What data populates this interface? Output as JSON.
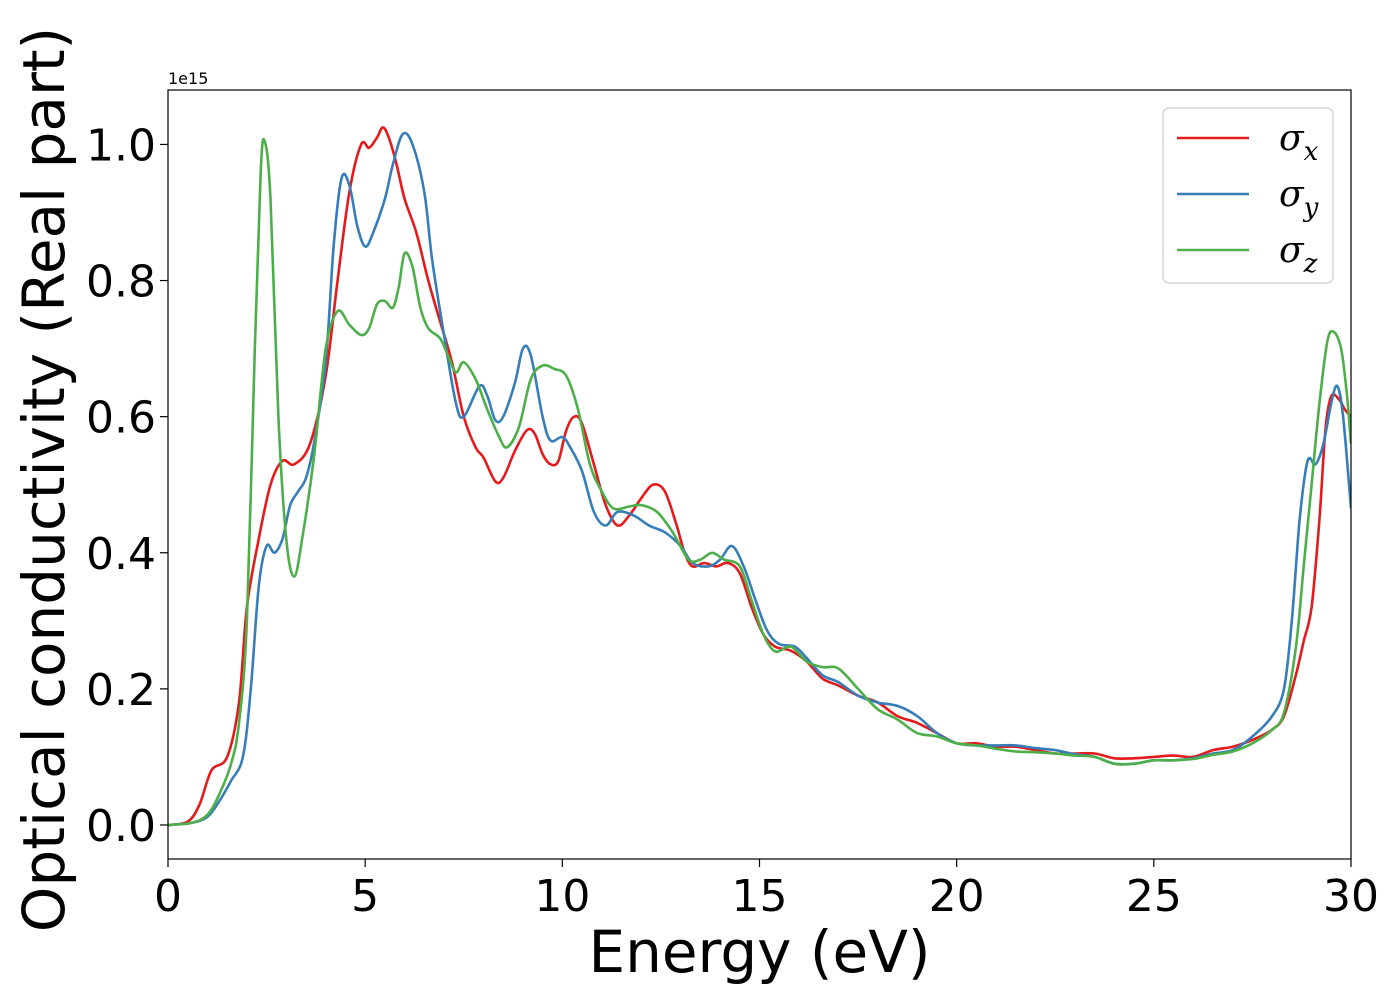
{
  "chart_data": {
    "type": "line",
    "xlabel": "Energy (eV)",
    "ylabel": "Optical conductivity (Real part)",
    "y_offset_label": "1e15",
    "xlim": [
      0,
      30
    ],
    "ylim": [
      -0.05,
      1.08
    ],
    "x_ticks": [
      0,
      5,
      10,
      15,
      20,
      25,
      30
    ],
    "x_tick_labels": [
      "0",
      "5",
      "10",
      "15",
      "20",
      "25",
      "30"
    ],
    "y_ticks": [
      0.0,
      0.2,
      0.4,
      0.6,
      0.8,
      1.0
    ],
    "y_tick_labels": [
      "0.0",
      "0.2",
      "0.4",
      "0.6",
      "0.8",
      "1.0"
    ],
    "grid": false,
    "legend_position": "top-right",
    "series": [
      {
        "name": "σ_x",
        "label_main": "σ",
        "label_sub": "x",
        "color": "#e41a1c",
        "points": [
          [
            0,
            0.0
          ],
          [
            0.5,
            0.005
          ],
          [
            0.8,
            0.03
          ],
          [
            1.1,
            0.08
          ],
          [
            1.5,
            0.1
          ],
          [
            1.8,
            0.18
          ],
          [
            2.0,
            0.32
          ],
          [
            2.3,
            0.42
          ],
          [
            2.6,
            0.5
          ],
          [
            2.9,
            0.535
          ],
          [
            3.2,
            0.53
          ],
          [
            3.6,
            0.56
          ],
          [
            4.0,
            0.66
          ],
          [
            4.3,
            0.8
          ],
          [
            4.6,
            0.93
          ],
          [
            4.9,
            1.0
          ],
          [
            5.1,
            0.995
          ],
          [
            5.3,
            1.01
          ],
          [
            5.45,
            1.025
          ],
          [
            5.6,
            1.01
          ],
          [
            5.8,
            0.97
          ],
          [
            6.0,
            0.92
          ],
          [
            6.3,
            0.87
          ],
          [
            6.6,
            0.8
          ],
          [
            6.9,
            0.74
          ],
          [
            7.2,
            0.68
          ],
          [
            7.5,
            0.6
          ],
          [
            7.8,
            0.555
          ],
          [
            8.0,
            0.54
          ],
          [
            8.3,
            0.505
          ],
          [
            8.5,
            0.51
          ],
          [
            8.8,
            0.55
          ],
          [
            9.1,
            0.58
          ],
          [
            9.3,
            0.575
          ],
          [
            9.5,
            0.545
          ],
          [
            9.7,
            0.53
          ],
          [
            9.9,
            0.535
          ],
          [
            10.1,
            0.58
          ],
          [
            10.3,
            0.6
          ],
          [
            10.5,
            0.59
          ],
          [
            10.8,
            0.53
          ],
          [
            11.1,
            0.47
          ],
          [
            11.4,
            0.44
          ],
          [
            11.7,
            0.455
          ],
          [
            12.0,
            0.48
          ],
          [
            12.3,
            0.5
          ],
          [
            12.6,
            0.49
          ],
          [
            12.9,
            0.44
          ],
          [
            13.1,
            0.4
          ],
          [
            13.3,
            0.38
          ],
          [
            13.6,
            0.385
          ],
          [
            13.9,
            0.38
          ],
          [
            14.2,
            0.385
          ],
          [
            14.5,
            0.37
          ],
          [
            14.8,
            0.32
          ],
          [
            15.1,
            0.28
          ],
          [
            15.4,
            0.262
          ],
          [
            15.8,
            0.256
          ],
          [
            16.2,
            0.24
          ],
          [
            16.6,
            0.215
          ],
          [
            17.0,
            0.205
          ],
          [
            17.5,
            0.19
          ],
          [
            18.0,
            0.18
          ],
          [
            18.5,
            0.16
          ],
          [
            19.0,
            0.15
          ],
          [
            19.5,
            0.135
          ],
          [
            20.0,
            0.12
          ],
          [
            20.5,
            0.12
          ],
          [
            21.0,
            0.115
          ],
          [
            21.5,
            0.115
          ],
          [
            22.0,
            0.11
          ],
          [
            22.5,
            0.105
          ],
          [
            23.0,
            0.105
          ],
          [
            23.5,
            0.105
          ],
          [
            24.0,
            0.098
          ],
          [
            24.5,
            0.098
          ],
          [
            25.0,
            0.1
          ],
          [
            25.5,
            0.102
          ],
          [
            26.0,
            0.1
          ],
          [
            26.5,
            0.11
          ],
          [
            27.0,
            0.115
          ],
          [
            27.5,
            0.125
          ],
          [
            28.0,
            0.14
          ],
          [
            28.3,
            0.16
          ],
          [
            28.6,
            0.22
          ],
          [
            28.8,
            0.27
          ],
          [
            29.0,
            0.32
          ],
          [
            29.2,
            0.45
          ],
          [
            29.35,
            0.58
          ],
          [
            29.5,
            0.63
          ],
          [
            29.7,
            0.625
          ],
          [
            29.85,
            0.61
          ],
          [
            30.0,
            0.6
          ]
        ]
      },
      {
        "name": "σ_y",
        "label_main": "σ",
        "label_sub": "y",
        "color": "#377eb8",
        "points": [
          [
            0,
            0.0
          ],
          [
            0.6,
            0.003
          ],
          [
            1.0,
            0.012
          ],
          [
            1.3,
            0.035
          ],
          [
            1.6,
            0.065
          ],
          [
            1.9,
            0.1
          ],
          [
            2.1,
            0.2
          ],
          [
            2.3,
            0.35
          ],
          [
            2.5,
            0.41
          ],
          [
            2.7,
            0.4
          ],
          [
            2.9,
            0.42
          ],
          [
            3.1,
            0.47
          ],
          [
            3.3,
            0.49
          ],
          [
            3.5,
            0.51
          ],
          [
            3.7,
            0.56
          ],
          [
            4.0,
            0.68
          ],
          [
            4.2,
            0.85
          ],
          [
            4.4,
            0.95
          ],
          [
            4.6,
            0.94
          ],
          [
            4.8,
            0.88
          ],
          [
            5.0,
            0.85
          ],
          [
            5.2,
            0.87
          ],
          [
            5.5,
            0.92
          ],
          [
            5.7,
            0.97
          ],
          [
            5.95,
            1.015
          ],
          [
            6.2,
            1.0
          ],
          [
            6.5,
            0.93
          ],
          [
            6.7,
            0.83
          ],
          [
            7.0,
            0.72
          ],
          [
            7.3,
            0.62
          ],
          [
            7.5,
            0.6
          ],
          [
            7.9,
            0.645
          ],
          [
            8.1,
            0.63
          ],
          [
            8.3,
            0.595
          ],
          [
            8.5,
            0.6
          ],
          [
            8.8,
            0.65
          ],
          [
            9.0,
            0.7
          ],
          [
            9.2,
            0.69
          ],
          [
            9.5,
            0.6
          ],
          [
            9.7,
            0.565
          ],
          [
            10.0,
            0.57
          ],
          [
            10.2,
            0.555
          ],
          [
            10.5,
            0.52
          ],
          [
            10.8,
            0.46
          ],
          [
            11.1,
            0.44
          ],
          [
            11.4,
            0.46
          ],
          [
            11.8,
            0.455
          ],
          [
            12.2,
            0.44
          ],
          [
            12.6,
            0.43
          ],
          [
            13.0,
            0.41
          ],
          [
            13.3,
            0.385
          ],
          [
            13.7,
            0.38
          ],
          [
            14.0,
            0.39
          ],
          [
            14.3,
            0.41
          ],
          [
            14.6,
            0.38
          ],
          [
            14.9,
            0.33
          ],
          [
            15.2,
            0.285
          ],
          [
            15.5,
            0.266
          ],
          [
            15.9,
            0.262
          ],
          [
            16.2,
            0.245
          ],
          [
            16.6,
            0.22
          ],
          [
            17.0,
            0.21
          ],
          [
            17.5,
            0.19
          ],
          [
            18.0,
            0.18
          ],
          [
            18.5,
            0.175
          ],
          [
            19.0,
            0.16
          ],
          [
            19.5,
            0.135
          ],
          [
            20.0,
            0.12
          ],
          [
            20.5,
            0.117
          ],
          [
            21.0,
            0.117
          ],
          [
            21.5,
            0.117
          ],
          [
            22.0,
            0.113
          ],
          [
            22.5,
            0.11
          ],
          [
            23.0,
            0.104
          ],
          [
            23.5,
            0.1
          ],
          [
            24.0,
            0.09
          ],
          [
            24.5,
            0.09
          ],
          [
            25.0,
            0.095
          ],
          [
            25.5,
            0.095
          ],
          [
            26.0,
            0.098
          ],
          [
            26.5,
            0.105
          ],
          [
            27.0,
            0.11
          ],
          [
            27.5,
            0.13
          ],
          [
            28.0,
            0.16
          ],
          [
            28.3,
            0.2
          ],
          [
            28.5,
            0.3
          ],
          [
            28.7,
            0.45
          ],
          [
            28.9,
            0.535
          ],
          [
            29.1,
            0.53
          ],
          [
            29.3,
            0.56
          ],
          [
            29.5,
            0.62
          ],
          [
            29.65,
            0.645
          ],
          [
            29.8,
            0.6
          ],
          [
            30.0,
            0.465
          ]
        ]
      },
      {
        "name": "σ_z",
        "label_main": "σ",
        "label_sub": "z",
        "color": "#4daf4a",
        "points": [
          [
            0,
            0.0
          ],
          [
            0.6,
            0.003
          ],
          [
            1.0,
            0.015
          ],
          [
            1.3,
            0.045
          ],
          [
            1.6,
            0.09
          ],
          [
            1.8,
            0.15
          ],
          [
            2.0,
            0.3
          ],
          [
            2.2,
            0.7
          ],
          [
            2.35,
            0.96
          ],
          [
            2.45,
            1.005
          ],
          [
            2.6,
            0.92
          ],
          [
            2.8,
            0.6
          ],
          [
            3.0,
            0.42
          ],
          [
            3.2,
            0.365
          ],
          [
            3.4,
            0.42
          ],
          [
            3.7,
            0.54
          ],
          [
            4.0,
            0.7
          ],
          [
            4.3,
            0.755
          ],
          [
            4.6,
            0.735
          ],
          [
            4.9,
            0.72
          ],
          [
            5.1,
            0.73
          ],
          [
            5.3,
            0.765
          ],
          [
            5.5,
            0.77
          ],
          [
            5.7,
            0.76
          ],
          [
            5.85,
            0.79
          ],
          [
            6.0,
            0.84
          ],
          [
            6.2,
            0.82
          ],
          [
            6.4,
            0.76
          ],
          [
            6.6,
            0.73
          ],
          [
            6.9,
            0.715
          ],
          [
            7.1,
            0.69
          ],
          [
            7.3,
            0.665
          ],
          [
            7.5,
            0.68
          ],
          [
            7.8,
            0.655
          ],
          [
            8.1,
            0.61
          ],
          [
            8.4,
            0.57
          ],
          [
            8.6,
            0.555
          ],
          [
            8.9,
            0.585
          ],
          [
            9.2,
            0.655
          ],
          [
            9.5,
            0.675
          ],
          [
            9.8,
            0.67
          ],
          [
            10.1,
            0.66
          ],
          [
            10.4,
            0.61
          ],
          [
            10.7,
            0.53
          ],
          [
            11.0,
            0.49
          ],
          [
            11.3,
            0.465
          ],
          [
            11.7,
            0.468
          ],
          [
            12.0,
            0.47
          ],
          [
            12.4,
            0.46
          ],
          [
            12.8,
            0.43
          ],
          [
            13.2,
            0.39
          ],
          [
            13.5,
            0.39
          ],
          [
            13.8,
            0.4
          ],
          [
            14.1,
            0.39
          ],
          [
            14.5,
            0.38
          ],
          [
            14.8,
            0.33
          ],
          [
            15.1,
            0.28
          ],
          [
            15.4,
            0.255
          ],
          [
            15.8,
            0.262
          ],
          [
            16.2,
            0.24
          ],
          [
            16.6,
            0.232
          ],
          [
            17.0,
            0.23
          ],
          [
            17.5,
            0.2
          ],
          [
            18.0,
            0.17
          ],
          [
            18.5,
            0.155
          ],
          [
            19.0,
            0.135
          ],
          [
            19.5,
            0.13
          ],
          [
            20.0,
            0.12
          ],
          [
            20.5,
            0.117
          ],
          [
            21.0,
            0.112
          ],
          [
            21.5,
            0.108
          ],
          [
            22.0,
            0.107
          ],
          [
            22.5,
            0.105
          ],
          [
            23.0,
            0.102
          ],
          [
            23.5,
            0.1
          ],
          [
            24.0,
            0.09
          ],
          [
            24.5,
            0.09
          ],
          [
            25.0,
            0.095
          ],
          [
            25.5,
            0.095
          ],
          [
            26.0,
            0.097
          ],
          [
            26.5,
            0.103
          ],
          [
            27.0,
            0.108
          ],
          [
            27.5,
            0.12
          ],
          [
            28.0,
            0.14
          ],
          [
            28.3,
            0.165
          ],
          [
            28.6,
            0.26
          ],
          [
            28.8,
            0.38
          ],
          [
            29.0,
            0.5
          ],
          [
            29.2,
            0.62
          ],
          [
            29.4,
            0.71
          ],
          [
            29.55,
            0.725
          ],
          [
            29.75,
            0.7
          ],
          [
            29.9,
            0.63
          ],
          [
            30.0,
            0.56
          ]
        ]
      }
    ]
  }
}
